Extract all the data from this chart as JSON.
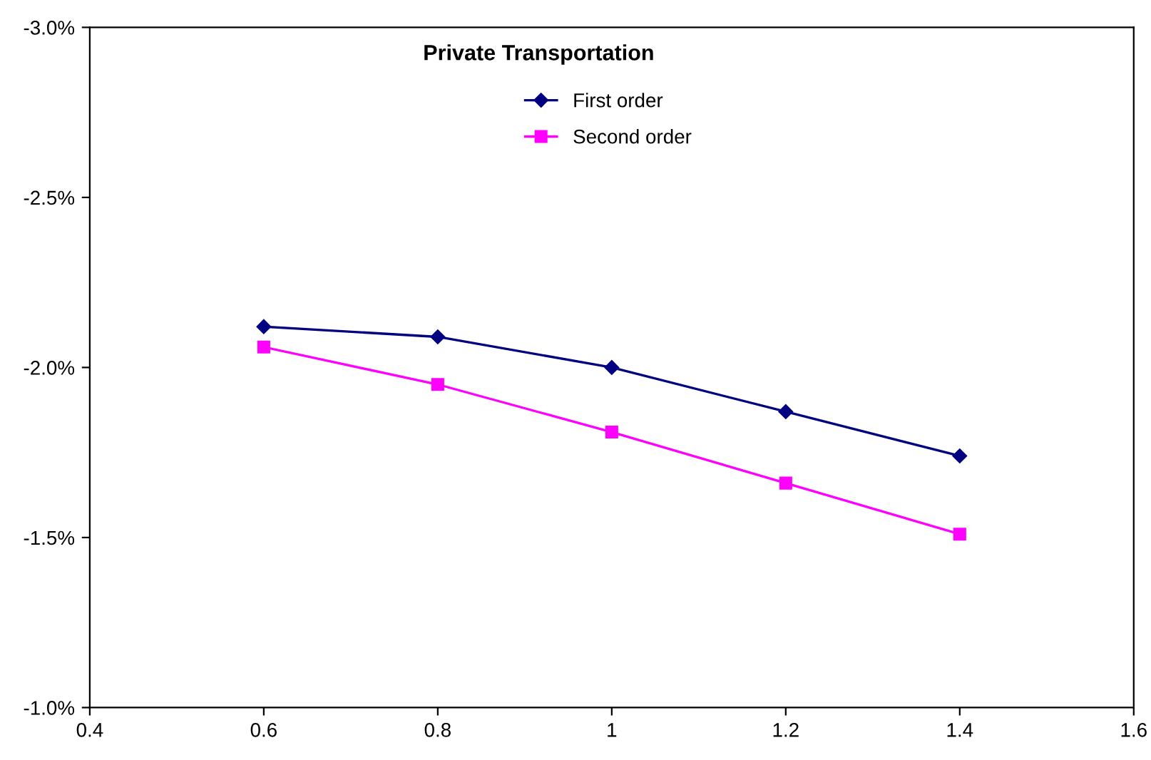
{
  "chart_data": {
    "type": "line",
    "title": "Private Transportation",
    "x": [
      0.6,
      0.8,
      1,
      1.2,
      1.4
    ],
    "series": [
      {
        "name": "First order",
        "color": "#000080",
        "marker": "diamond",
        "values": [
          -2.12,
          -2.09,
          -2.0,
          -1.87,
          -1.74
        ]
      },
      {
        "name": "Second order",
        "color": "#ff00ff",
        "marker": "square",
        "values": [
          -2.06,
          -1.95,
          -1.81,
          -1.66,
          -1.51
        ]
      }
    ],
    "xlim": [
      0.4,
      1.6
    ],
    "xticks": [
      0.4,
      0.6,
      0.8,
      1,
      1.2,
      1.4,
      1.6
    ],
    "ylim": [
      -1.0,
      -3.0
    ],
    "yticks": [
      {
        "value": -3.0,
        "label": "-3.0%"
      },
      {
        "value": -2.5,
        "label": "-2.5%"
      },
      {
        "value": -2.0,
        "label": "-2.0%"
      },
      {
        "value": -1.5,
        "label": "-1.5%"
      },
      {
        "value": -1.0,
        "label": "-1.0%"
      }
    ],
    "grid": false,
    "legend": "top",
    "line_style": "solid"
  }
}
